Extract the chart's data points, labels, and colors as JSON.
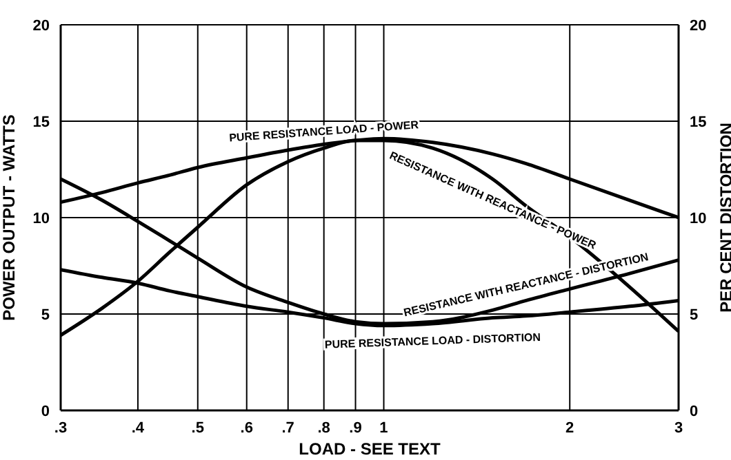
{
  "chart_data": {
    "type": "line",
    "xlabel": "LOAD - SEE TEXT",
    "ylabel": "POWER OUTPUT - WATTS",
    "y2label": "PER CENT DISTORTION",
    "log": "x",
    "grid": true,
    "legend": false,
    "marker": "none",
    "line_style": "solid",
    "x": [
      0.3,
      0.35,
      0.4,
      0.45,
      0.5,
      0.6,
      0.7,
      0.8,
      0.9,
      1,
      1.2,
      1.5,
      1.7,
      2,
      2.5,
      3
    ],
    "xlim": [
      0.3,
      3
    ],
    "xticks": [
      {
        "value": 0.3,
        "label": ".3"
      },
      {
        "value": 0.4,
        "label": ".4"
      },
      {
        "value": 0.5,
        "label": ".5"
      },
      {
        "value": 0.6,
        "label": ".6"
      },
      {
        "value": 0.7,
        "label": ".7"
      },
      {
        "value": 0.8,
        "label": ".8"
      },
      {
        "value": 0.9,
        "label": ".9"
      },
      1,
      2,
      3
    ],
    "ylim": [
      0,
      20
    ],
    "yticks": [
      0,
      5,
      10,
      15,
      20
    ],
    "y2lim": [
      0,
      20
    ],
    "y2ticks": [
      0,
      5,
      10,
      15,
      20
    ],
    "series": [
      {
        "name": "PURE RESISTANCE LOAD - POWER",
        "color": "#000000",
        "values": [
          10.8,
          11.3,
          11.8,
          12.2,
          12.6,
          13.1,
          13.5,
          13.8,
          14.0,
          14.1,
          13.9,
          13.3,
          12.8,
          12.0,
          10.9,
          10.0
        ]
      },
      {
        "name": "RESISTANCE WITH REACTANCE - POWER",
        "color": "#000000",
        "values": [
          3.9,
          5.3,
          6.7,
          8.2,
          9.5,
          11.7,
          12.9,
          13.6,
          14.0,
          14.0,
          13.6,
          12.0,
          10.6,
          9.0,
          6.4,
          4.1
        ]
      },
      {
        "name": "RESISTANCE WITH REACTANCE - DISTORTION",
        "color": "#000000",
        "values": [
          12.0,
          10.9,
          9.8,
          8.8,
          7.9,
          6.4,
          5.6,
          5.0,
          4.6,
          4.5,
          4.6,
          5.2,
          5.7,
          6.3,
          7.1,
          7.8
        ]
      },
      {
        "name": "PURE RESISTANCE LOAD - DISTORTION",
        "color": "#000000",
        "values": [
          7.3,
          6.9,
          6.6,
          6.2,
          5.9,
          5.4,
          5.1,
          4.8,
          4.5,
          4.4,
          4.5,
          4.8,
          4.9,
          5.1,
          5.4,
          5.7
        ]
      }
    ]
  }
}
